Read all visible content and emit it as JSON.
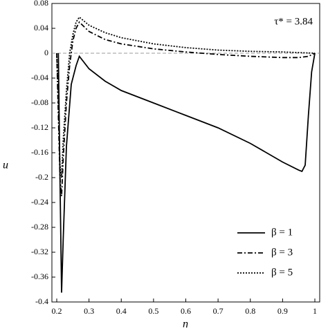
{
  "chart_data": {
    "type": "line",
    "x_label": "η",
    "y_label": "u",
    "annotation": "τ* = 3.84",
    "xlim": [
      0.185,
      1.015
    ],
    "ylim": [
      -0.4,
      0.08
    ],
    "xticks": [
      0.2,
      0.3,
      0.4,
      0.5,
      0.6,
      0.7,
      0.8,
      0.9,
      1
    ],
    "yticks": [
      0.08,
      0.04,
      0,
      -0.04,
      -0.08,
      -0.12,
      -0.16,
      -0.2,
      -0.24,
      -0.28,
      -0.32,
      -0.36,
      -0.4
    ],
    "reference_line": 0,
    "legend": "lower right",
    "series": [
      {
        "name": "β = 1",
        "color": "#000000",
        "dash": "solid",
        "x": [
          0.205,
          0.21,
          0.215,
          0.22,
          0.23,
          0.245,
          0.26,
          0.27,
          0.3,
          0.35,
          0.4,
          0.5,
          0.6,
          0.7,
          0.8,
          0.9,
          0.95,
          0.96,
          0.97,
          0.98,
          0.99,
          1
        ],
        "values": [
          0,
          -0.2,
          -0.385,
          -0.3,
          -0.15,
          -0.05,
          -0.02,
          -0.005,
          -0.025,
          -0.045,
          -0.06,
          -0.08,
          -0.1,
          -0.12,
          -0.145,
          -0.175,
          -0.188,
          -0.19,
          -0.18,
          -0.1,
          -0.03,
          0
        ]
      },
      {
        "name": "β = 3",
        "color": "#000000",
        "dash": "dashdot",
        "x": [
          0.2,
          0.205,
          0.21,
          0.215,
          0.22,
          0.23,
          0.24,
          0.25,
          0.26,
          0.27,
          0.3,
          0.35,
          0.4,
          0.5,
          0.6,
          0.7,
          0.8,
          0.9,
          0.95,
          0.98,
          1
        ],
        "values": [
          0,
          -0.1,
          -0.2,
          -0.23,
          -0.17,
          -0.08,
          -0.02,
          0.02,
          0.04,
          0.05,
          0.035,
          0.022,
          0.015,
          0.007,
          0.002,
          -0.002,
          -0.005,
          -0.007,
          -0.007,
          -0.005,
          0
        ]
      },
      {
        "name": "β = 5",
        "color": "#000000",
        "dash": "dotted",
        "x": [
          0.2,
          0.205,
          0.21,
          0.215,
          0.22,
          0.23,
          0.24,
          0.25,
          0.26,
          0.27,
          0.3,
          0.35,
          0.4,
          0.5,
          0.6,
          0.7,
          0.8,
          0.9,
          0.95,
          1
        ],
        "values": [
          0,
          -0.08,
          -0.18,
          -0.2,
          -0.14,
          -0.06,
          0,
          0.03,
          0.05,
          0.058,
          0.045,
          0.033,
          0.025,
          0.015,
          0.009,
          0.005,
          0.003,
          0.002,
          0.001,
          0
        ]
      }
    ]
  }
}
